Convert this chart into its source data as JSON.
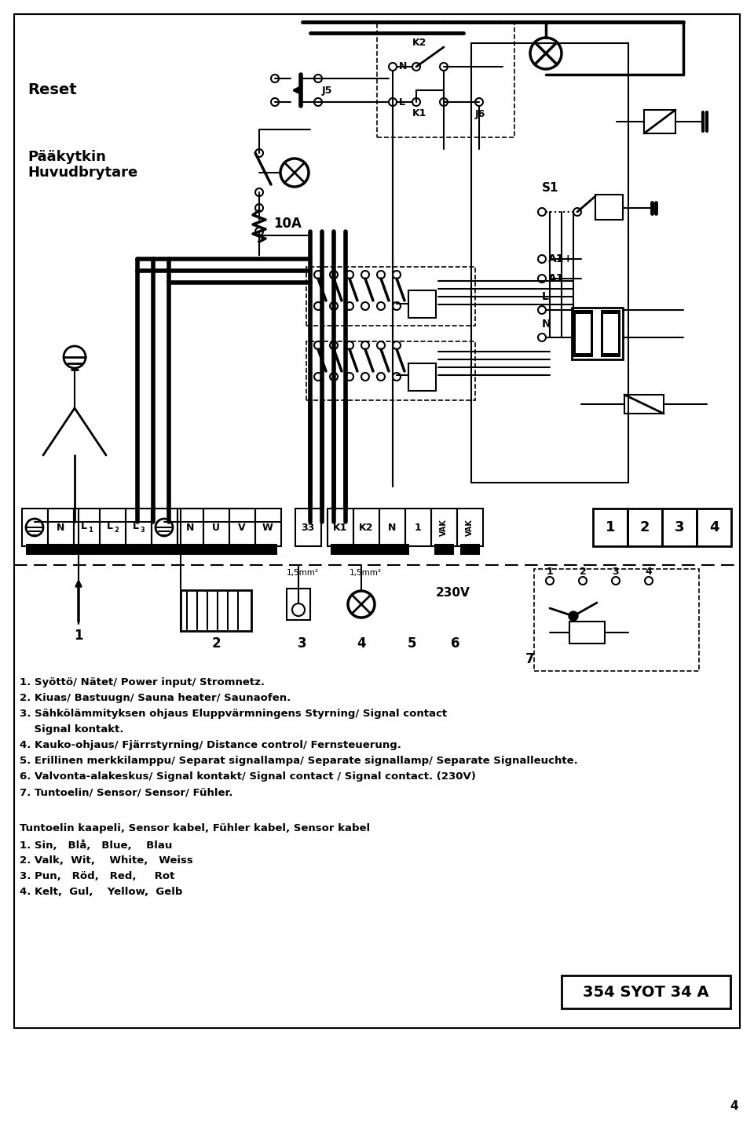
{
  "title": "354 SYOT 34 A",
  "page_num": "4",
  "bg_color": "#ffffff",
  "caption1": "1. Syöttö/ Nätet/ Power input/ Stromnetz.",
  "caption2": "2. Kiuas/ Bastuugn/ Sauna heater/ Saunaofen.",
  "caption3": "3. Sähkölämmityksen ohjaus Eluppvärmningens Styrning/ Signal contact",
  "caption3b": "    Signal kontakt.",
  "caption4": "4. Kauko-ohjaus/ Fjärrstyrning/ Distance control/ Fernsteuerung.",
  "caption5": "5. Erillinen merkkilamppu/ Separat signallampa/ Separate signallamp/ Separate Signalleuchte.",
  "caption6": "6. Valvonta-alakeskus/ Signal kontakt/ Signal contact / Signal contact. (230V)",
  "caption7": "7. Tuntoelin/ Sensor/ Sensor/ Fühler.",
  "cable_title": "Tuntoelin kaapeli, Sensor kabel, Fühler kabel, Sensor kabel",
  "color1": "1. Sin,   Blå,   Blue,    Blau",
  "color2": "2. Valk,  Wit,    White,   Weiss",
  "color3": "3. Pun,   Röd,   Red,     Rot",
  "color4": "4. Kelt,  Gul,    Yellow,  Gelb"
}
